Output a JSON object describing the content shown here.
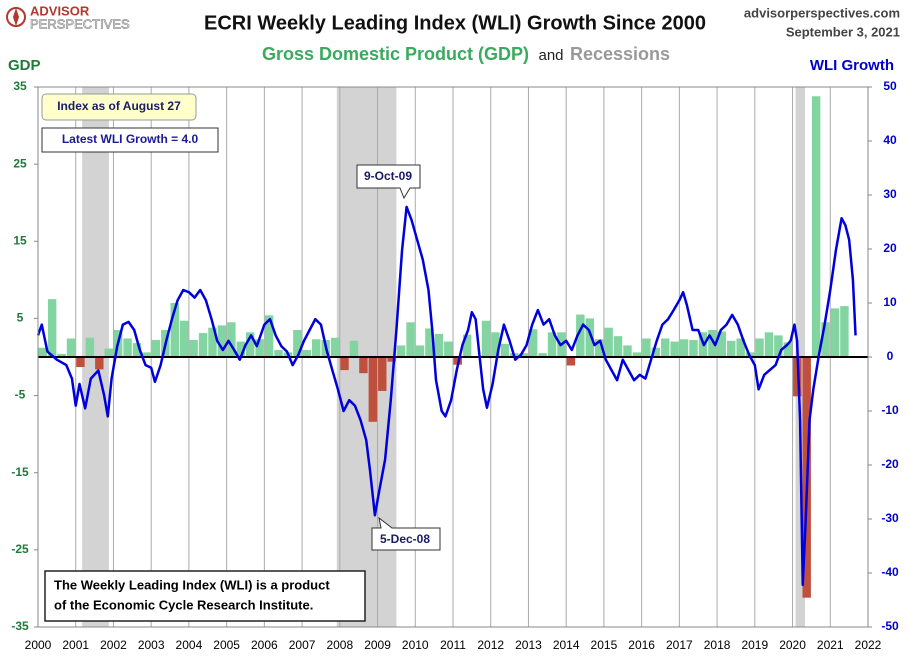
{
  "chart_data": {
    "type": "combo",
    "title": "ECRI Weekly Leading Index (WLI) Growth Since 2000",
    "subtitle_parts": [
      "Gross Domestic Product (GDP)",
      "and",
      "Recessions"
    ],
    "brand": [
      "ADVISOR",
      "PERSPECTIVES"
    ],
    "site": "advisorperspectives.com",
    "date": "September 3, 2021",
    "ylabel": "GDP",
    "y2label": "WLI Growth",
    "annotations": [
      "Index as of August 27",
      "Latest WLI Growth = 4.0",
      "9-Oct-09",
      "5-Dec-08"
    ],
    "note": [
      "The Weekly Leading Index (WLI) is a product",
      "of the Economic Cycle Research Institute."
    ],
    "xlim": [
      2000,
      2022
    ],
    "xticks": [
      2000,
      2001,
      2002,
      2003,
      2004,
      2005,
      2006,
      2007,
      2008,
      2009,
      2010,
      2011,
      2012,
      2013,
      2014,
      2015,
      2016,
      2017,
      2018,
      2019,
      2020,
      2021,
      2022
    ],
    "ylim": [
      -35,
      35
    ],
    "yticks": [
      -35,
      -25,
      -15,
      -5,
      5,
      15,
      25,
      35
    ],
    "y2lim": [
      -50,
      50
    ],
    "y2ticks": [
      -50,
      -40,
      -30,
      -20,
      -10,
      0,
      10,
      20,
      30,
      40,
      50
    ],
    "grid": true,
    "recession_color": "#d3d3d3",
    "recessions": [
      [
        2001.17,
        2001.88
      ],
      [
        2007.92,
        2009.5
      ],
      [
        2020.08,
        2020.33
      ]
    ],
    "series": [
      {
        "type": "bar",
        "color": "#82d4a0",
        "negative_color": "#c0503e",
        "bar_width": 0.25,
        "x": [
          2000,
          2000.25,
          2000.5,
          2000.75,
          2001,
          2001.25,
          2001.5,
          2001.75,
          2002,
          2002.25,
          2002.5,
          2002.75,
          2003,
          2003.25,
          2003.5,
          2003.75,
          2004,
          2004.25,
          2004.5,
          2004.75,
          2005,
          2005.25,
          2005.5,
          2005.75,
          2006,
          2006.25,
          2006.5,
          2006.75,
          2007,
          2007.25,
          2007.5,
          2007.75,
          2008,
          2008.25,
          2008.5,
          2008.75,
          2009,
          2009.25,
          2009.5,
          2009.75,
          2010,
          2010.25,
          2010.5,
          2010.75,
          2011,
          2011.25,
          2011.5,
          2011.75,
          2012,
          2012.25,
          2012.5,
          2012.75,
          2013,
          2013.25,
          2013.5,
          2013.75,
          2014,
          2014.25,
          2014.5,
          2014.75,
          2015,
          2015.25,
          2015.5,
          2015.75,
          2016,
          2016.25,
          2016.5,
          2016.75,
          2017,
          2017.25,
          2017.5,
          2017.75,
          2018,
          2018.25,
          2018.5,
          2018.75,
          2019,
          2019.25,
          2019.5,
          2019.75,
          2020,
          2020.25,
          2020.5,
          2020.75,
          2021,
          2021.25
        ],
        "values": [
          1.2,
          7.5,
          0.4,
          2.4,
          -1.3,
          2.5,
          -1.6,
          1.1,
          3.5,
          2.4,
          1.8,
          0.6,
          2.2,
          3.5,
          7.0,
          4.7,
          2.2,
          3.1,
          3.8,
          4.1,
          4.5,
          2.0,
          3.2,
          2.3,
          5.4,
          0.9,
          0.6,
          3.5,
          0.9,
          2.3,
          2.2,
          2.5,
          -1.7,
          2.1,
          -2.1,
          -8.4,
          -4.4,
          -0.6,
          1.5,
          4.5,
          1.5,
          3.7,
          3.0,
          2.0,
          -1.0,
          2.9,
          -0.1,
          4.7,
          3.2,
          1.7,
          0.5,
          0.5,
          3.6,
          0.5,
          3.2,
          3.2,
          -1.1,
          5.5,
          5.0,
          2.3,
          3.8,
          2.7,
          1.5,
          0.6,
          2.4,
          1.2,
          2.4,
          2.0,
          2.3,
          2.2,
          3.2,
          3.5,
          3.3,
          2.1,
          2.4,
          0.6,
          2.4,
          3.2,
          2.8,
          1.9,
          -5.1,
          -31.2,
          33.8,
          4.5,
          6.3,
          6.6
        ]
      },
      {
        "type": "line",
        "axis": "y2",
        "color": "#0000dd",
        "x": [
          2000.0,
          2000.1,
          2000.25,
          2000.5,
          2000.75,
          2000.9,
          2001.0,
          2001.1,
          2001.25,
          2001.4,
          2001.6,
          2001.75,
          2001.85,
          2001.95,
          2002.1,
          2002.25,
          2002.4,
          2002.55,
          2002.7,
          2002.85,
          2003.0,
          2003.1,
          2003.25,
          2003.4,
          2003.55,
          2003.7,
          2003.85,
          2004.0,
          2004.15,
          2004.3,
          2004.45,
          2004.6,
          2004.75,
          2004.9,
          2005.05,
          2005.2,
          2005.35,
          2005.5,
          2005.65,
          2005.8,
          2006.0,
          2006.15,
          2006.3,
          2006.45,
          2006.6,
          2006.75,
          2006.9,
          2007.05,
          2007.2,
          2007.35,
          2007.5,
          2007.65,
          2007.8,
          2007.95,
          2008.1,
          2008.25,
          2008.4,
          2008.55,
          2008.7,
          2008.8,
          2008.93,
          2009.05,
          2009.2,
          2009.35,
          2009.5,
          2009.65,
          2009.77,
          2009.9,
          2010.05,
          2010.2,
          2010.35,
          2010.45,
          2010.55,
          2010.7,
          2010.8,
          2010.95,
          2011.1,
          2011.25,
          2011.4,
          2011.5,
          2011.6,
          2011.7,
          2011.8,
          2011.9,
          2012.05,
          2012.2,
          2012.35,
          2012.5,
          2012.65,
          2012.8,
          2012.95,
          2013.1,
          2013.25,
          2013.4,
          2013.55,
          2013.7,
          2013.85,
          2014.0,
          2014.15,
          2014.3,
          2014.45,
          2014.6,
          2014.75,
          2014.9,
          2015.05,
          2015.2,
          2015.35,
          2015.5,
          2015.65,
          2015.8,
          2015.95,
          2016.1,
          2016.25,
          2016.4,
          2016.55,
          2016.7,
          2016.85,
          2017.0,
          2017.1,
          2017.2,
          2017.35,
          2017.5,
          2017.65,
          2017.8,
          2017.95,
          2018.1,
          2018.25,
          2018.4,
          2018.55,
          2018.7,
          2018.85,
          2019.0,
          2019.1,
          2019.25,
          2019.4,
          2019.55,
          2019.7,
          2019.85,
          2019.95,
          2020.05,
          2020.12,
          2020.2,
          2020.27,
          2020.35,
          2020.45,
          2020.55,
          2020.7,
          2020.85,
          2021.0,
          2021.15,
          2021.3,
          2021.4,
          2021.5,
          2021.6,
          2021.67
        ],
        "values": [
          4,
          6,
          1,
          -0.5,
          -1.5,
          -4,
          -9,
          -5,
          -9.5,
          -4,
          -2.5,
          -7,
          -11,
          -4,
          2,
          6,
          6.5,
          5,
          1.3,
          -1.5,
          -2,
          -4.6,
          -1.5,
          3,
          7,
          10.5,
          12.4,
          12,
          11,
          12.4,
          10.5,
          7,
          3,
          1.3,
          3,
          1.3,
          -0.5,
          2.2,
          4,
          2,
          6,
          7,
          4,
          2,
          1,
          -1.5,
          0.4,
          3,
          5,
          7,
          6,
          1.3,
          -2.4,
          -6,
          -10,
          -8,
          -9,
          -11.7,
          -15.4,
          -21,
          -29.3,
          -24.6,
          -19,
          -8,
          5,
          19.8,
          27.8,
          25.4,
          21.7,
          18,
          12.4,
          5,
          -4.3,
          -10,
          -11,
          -8,
          -2.4,
          2.2,
          5,
          8.3,
          7,
          0.4,
          -6,
          -9.4,
          -5,
          1.3,
          6,
          3,
          -0.5,
          0.4,
          2.2,
          6,
          8.7,
          6,
          7,
          4,
          2.2,
          3,
          1.3,
          4,
          6,
          5,
          2.2,
          3,
          -0.5,
          -2.4,
          -4.3,
          -0.5,
          -2.4,
          -4.3,
          -3.3,
          -4,
          -0.5,
          3,
          6,
          7,
          8.7,
          10.5,
          12,
          9.6,
          5,
          5,
          2.2,
          4,
          2.2,
          5,
          6,
          7.8,
          6,
          3,
          0.4,
          -1.5,
          -6,
          -3.3,
          -2.4,
          -1.5,
          1.3,
          2.2,
          3,
          6,
          3,
          -11.7,
          -42.2,
          -30,
          -11.7,
          -6,
          0.4,
          6,
          12.4,
          19.8,
          25.7,
          24.4,
          21.7,
          14.3,
          4
        ]
      }
    ]
  }
}
